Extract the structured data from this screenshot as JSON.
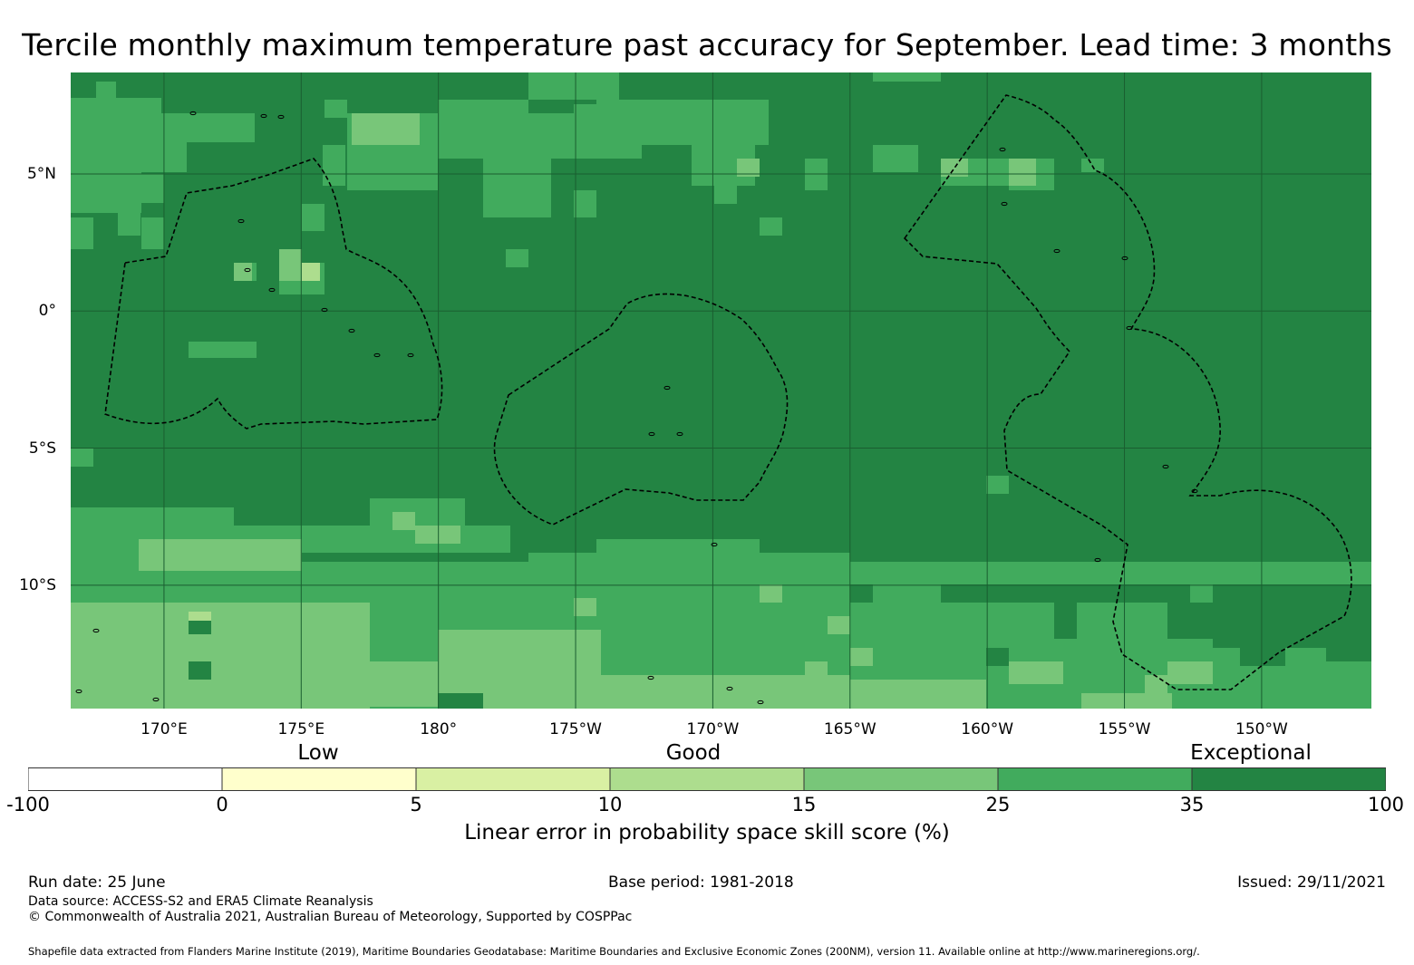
{
  "title": "Tercile monthly maximum temperature past accuracy for September. Lead time: 3 months",
  "map": {
    "lon_range": [
      -193.4,
      -146.0
    ],
    "lat_range": [
      -14.5,
      8.7
    ],
    "x_ticks": [
      {
        "lon": -190,
        "label": "170°E"
      },
      {
        "lon": -185,
        "label": "175°E"
      },
      {
        "lon": -180,
        "label": "180°"
      },
      {
        "lon": -175,
        "label": "175°W"
      },
      {
        "lon": -170,
        "label": "170°W"
      },
      {
        "lon": -165,
        "label": "165°W"
      },
      {
        "lon": -160,
        "label": "160°W"
      },
      {
        "lon": -155,
        "label": "155°W"
      },
      {
        "lon": -150,
        "label": "150°W"
      }
    ],
    "y_ticks": [
      {
        "lat": 5,
        "label": "5°N"
      },
      {
        "lat": 0,
        "label": "0°"
      },
      {
        "lat": -5,
        "label": "5°S"
      },
      {
        "lat": -10,
        "label": "10°S"
      }
    ],
    "background_color": "#238443",
    "grid_color": "#1a5e30",
    "boundary_style": "dashed black",
    "colors": {
      "class_25_35": "#41ab5d",
      "class_15_25": "#78c679",
      "class_10_15": "#addd8e",
      "class_35_100": "#238443"
    }
  },
  "legend": {
    "categories": [
      {
        "label": "Low"
      },
      {
        "label": "Good"
      },
      {
        "label": "Exceptional"
      }
    ],
    "bins": [
      {
        "from": -100,
        "to": 0,
        "color": "#ffffff"
      },
      {
        "from": 0,
        "to": 5,
        "color": "#ffffcc"
      },
      {
        "from": 5,
        "to": 10,
        "color": "#d9f0a3"
      },
      {
        "from": 10,
        "to": 15,
        "color": "#addd8e"
      },
      {
        "from": 15,
        "to": 25,
        "color": "#78c679"
      },
      {
        "from": 25,
        "to": 35,
        "color": "#41ab5d"
      },
      {
        "from": 35,
        "to": 100,
        "color": "#238443"
      }
    ],
    "tick_labels": [
      "-100",
      "0",
      "5",
      "10",
      "15",
      "25",
      "35",
      "100"
    ],
    "label": "Linear error in probability space skill score (%)"
  },
  "footer": {
    "run_date": "Run date: 25 June",
    "base_period": "Base period: 1981-2018",
    "issued": "Issued: 29/11/2021",
    "data_source": "Data source: ACCESS-S2 and ERA5 Climate Reanalysis",
    "copyright": "© Commonwealth of Australia 2021, Australian Bureau of Meteorology, Supported by COSPPac",
    "shapefile_credit": "Shapefile data extracted from Flanders Marine Institute (2019), Maritime Boundaries Geodatabase: Maritime Boundaries and Exclusive Economic Zones (200NM), version 11. Available online at http://www.marineregions.org/."
  }
}
